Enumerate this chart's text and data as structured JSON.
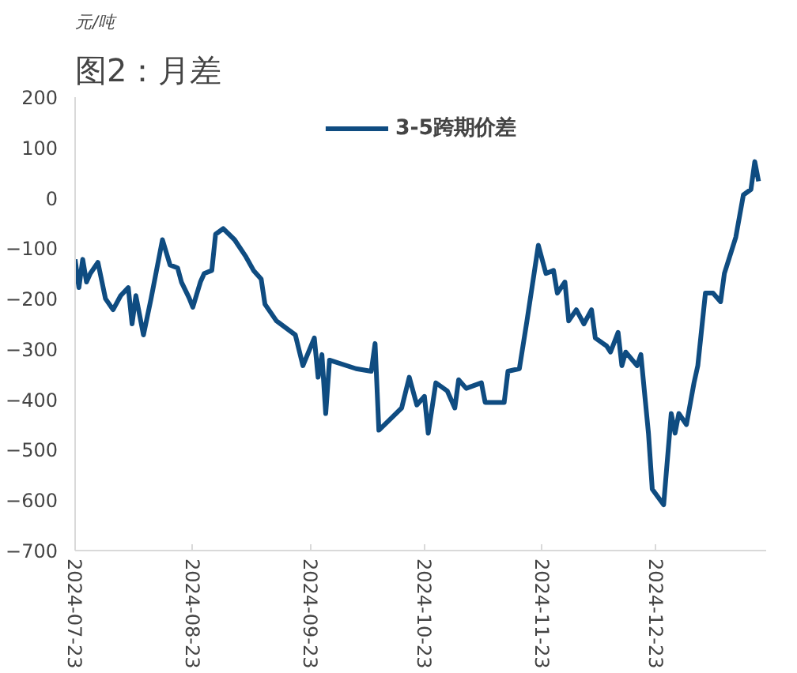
{
  "chart_data": {
    "type": "line",
    "title": "图2：月差",
    "ylabel": "元/吨",
    "legend": "top",
    "grid": false,
    "xlim": [
      "2024-07-23",
      "2025-01-21"
    ],
    "ylim": [
      -700,
      200
    ],
    "xticks": [
      "2024-07-23",
      "2024-08-23",
      "2024-09-23",
      "2024-10-23",
      "2024-11-23",
      "2024-12-23"
    ],
    "yticks": [
      -700,
      -600,
      -500,
      -400,
      -300,
      -200,
      -100,
      0,
      100,
      200
    ],
    "x": [
      "2024-07-23",
      "2024-07-24",
      "2024-07-25",
      "2024-07-26",
      "2024-07-27",
      "2024-07-29",
      "2024-07-31",
      "2024-08-02",
      "2024-08-04",
      "2024-08-06",
      "2024-08-07",
      "2024-08-08",
      "2024-08-10",
      "2024-08-12",
      "2024-08-15",
      "2024-08-17",
      "2024-08-19",
      "2024-08-20",
      "2024-08-22",
      "2024-08-23",
      "2024-08-25",
      "2024-08-26",
      "2024-08-28",
      "2024-08-29",
      "2024-08-31",
      "2024-09-03",
      "2024-09-06",
      "2024-09-08",
      "2024-09-10",
      "2024-09-11",
      "2024-09-14",
      "2024-09-19",
      "2024-09-21",
      "2024-09-24",
      "2024-09-25",
      "2024-09-26",
      "2024-09-27",
      "2024-09-28",
      "2024-10-05",
      "2024-10-09",
      "2024-10-10",
      "2024-10-11",
      "2024-10-14",
      "2024-10-17",
      "2024-10-19",
      "2024-10-21",
      "2024-10-23",
      "2024-10-24",
      "2024-10-26",
      "2024-10-29",
      "2024-10-31",
      "2024-11-01",
      "2024-11-03",
      "2024-11-07",
      "2024-11-08",
      "2024-11-13",
      "2024-11-14",
      "2024-11-17",
      "2024-11-19",
      "2024-11-22",
      "2024-11-24",
      "2024-11-26",
      "2024-11-27",
      "2024-11-29",
      "2024-11-30",
      "2024-12-02",
      "2024-12-04",
      "2024-12-06",
      "2024-12-07",
      "2024-12-10",
      "2024-12-11",
      "2024-12-13",
      "2024-12-14",
      "2024-12-15",
      "2024-12-18",
      "2024-12-19",
      "2024-12-21",
      "2024-12-22",
      "2024-12-25",
      "2024-12-27",
      "2024-12-28",
      "2024-12-29",
      "2024-12-31",
      "2025-01-02",
      "2025-01-03",
      "2025-01-05",
      "2025-01-07",
      "2025-01-09",
      "2025-01-10",
      "2025-01-13",
      "2025-01-15",
      "2025-01-17",
      "2025-01-18",
      "2025-01-19"
    ],
    "series": [
      {
        "name": "3-5跨期价差",
        "color": "#0f4c81",
        "values": [
          -122,
          -178,
          -122,
          -167,
          -150,
          -128,
          -200,
          -222,
          -194,
          -178,
          -250,
          -194,
          -272,
          -200,
          -83,
          -133,
          -139,
          -167,
          -198,
          -217,
          -167,
          -150,
          -144,
          -72,
          -61,
          -83,
          -117,
          -144,
          -161,
          -211,
          -244,
          -272,
          -333,
          -278,
          -356,
          -311,
          -428,
          -322,
          -339,
          -344,
          -289,
          -461,
          -439,
          -417,
          -356,
          -411,
          -394,
          -467,
          -367,
          -383,
          -417,
          -361,
          -378,
          -367,
          -406,
          -406,
          -344,
          -339,
          -244,
          -94,
          -150,
          -144,
          -189,
          -167,
          -244,
          -222,
          -250,
          -222,
          -278,
          -294,
          -306,
          -267,
          -333,
          -306,
          -333,
          -311,
          -467,
          -578,
          -609,
          -428,
          -467,
          -428,
          -450,
          -367,
          -333,
          -189,
          -189,
          -206,
          -150,
          -78,
          6,
          17,
          72,
          33
        ]
      }
    ]
  }
}
